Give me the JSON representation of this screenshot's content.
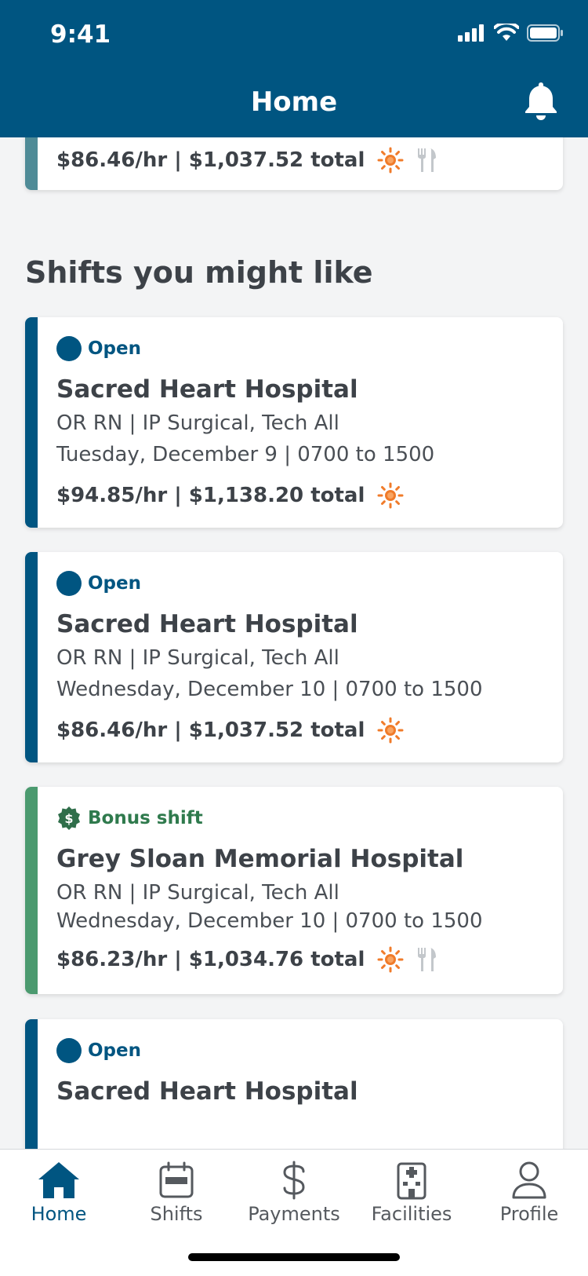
{
  "status_bar": {
    "time": "9:41"
  },
  "header": {
    "title": "Home"
  },
  "colors": {
    "brand": "#005581",
    "accent_teal": "#4f8b97",
    "bonus_green": "#4b9a6f",
    "sun_orange": "#f07b2a"
  },
  "top_partial_card": {
    "pay": "$86.46/hr | $1,037.52 total",
    "icons": [
      "sun-icon",
      "utensils-icon"
    ]
  },
  "section": {
    "title": "Shifts you might like"
  },
  "shifts": [
    {
      "status": "Open",
      "facility": "Sacred Heart Hospital",
      "role": "OR RN | IP Surgical, Tech All",
      "date": "Tuesday, December 9 | 0700 to 1500",
      "pay": "$94.85/hr | $1,138.20 total",
      "icons": [
        "sun-icon"
      ]
    },
    {
      "status": "Open",
      "facility": "Sacred Heart Hospital",
      "role": "OR RN | IP Surgical, Tech All",
      "date": "Wednesday, December 10 | 0700 to 1500",
      "pay": "$86.46/hr | $1,037.52 total",
      "icons": [
        "sun-icon"
      ]
    },
    {
      "status": "Bonus shift",
      "facility": "Grey Sloan Memorial Hospital",
      "role": "OR RN | IP Surgical, Tech All",
      "date": "Wednesday, December 10 | 0700 to 1500",
      "pay": "$86.23/hr | $1,034.76 total",
      "icons": [
        "sun-icon",
        "utensils-icon"
      ]
    },
    {
      "status": "Open",
      "facility": "Sacred Heart Hospital"
    }
  ],
  "tabbar": {
    "items": [
      {
        "label": "Home",
        "icon": "home-icon"
      },
      {
        "label": "Shifts",
        "icon": "calendar-icon"
      },
      {
        "label": "Payments",
        "icon": "dollar-icon"
      },
      {
        "label": "Facilities",
        "icon": "hospital-icon"
      },
      {
        "label": "Profile",
        "icon": "person-icon"
      }
    ]
  }
}
